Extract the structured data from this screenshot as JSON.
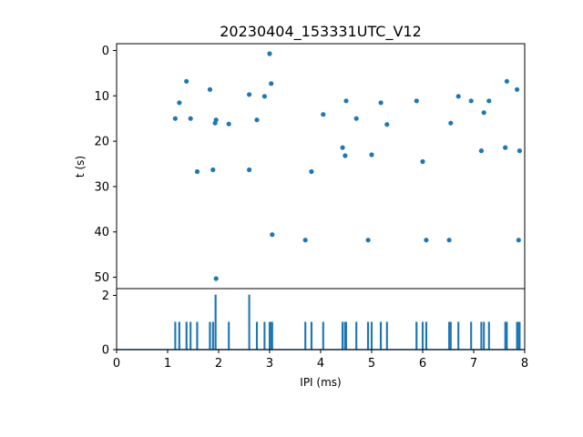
{
  "chart_data": [
    {
      "type": "scatter",
      "title": "20230404_153331UTC_V12",
      "xlabel": "",
      "ylabel": "t (s)",
      "xlim": [
        0,
        8
      ],
      "ylim": [
        52.5,
        -1.5
      ],
      "y_inverted": true,
      "yticks": [
        "0",
        "10",
        "20",
        "30",
        "40",
        "50"
      ],
      "grid": false,
      "color": "#1f77b4",
      "points": [
        {
          "x": 1.15,
          "y": 15.0
        },
        {
          "x": 1.23,
          "y": 11.5
        },
        {
          "x": 1.37,
          "y": 6.8
        },
        {
          "x": 1.45,
          "y": 15.0
        },
        {
          "x": 1.58,
          "y": 26.7
        },
        {
          "x": 1.83,
          "y": 8.6
        },
        {
          "x": 1.89,
          "y": 26.3
        },
        {
          "x": 1.93,
          "y": 16.0
        },
        {
          "x": 1.95,
          "y": 15.3
        },
        {
          "x": 1.95,
          "y": 50.3
        },
        {
          "x": 2.2,
          "y": 16.2
        },
        {
          "x": 2.6,
          "y": 9.7
        },
        {
          "x": 2.6,
          "y": 26.3
        },
        {
          "x": 2.75,
          "y": 15.3
        },
        {
          "x": 2.9,
          "y": 10.1
        },
        {
          "x": 3.0,
          "y": 0.7
        },
        {
          "x": 3.03,
          "y": 7.3
        },
        {
          "x": 3.05,
          "y": 40.6
        },
        {
          "x": 3.7,
          "y": 41.8
        },
        {
          "x": 3.82,
          "y": 26.7
        },
        {
          "x": 4.05,
          "y": 14.1
        },
        {
          "x": 4.43,
          "y": 21.4
        },
        {
          "x": 4.48,
          "y": 23.2
        },
        {
          "x": 4.5,
          "y": 11.1
        },
        {
          "x": 4.7,
          "y": 15.0
        },
        {
          "x": 4.93,
          "y": 41.8
        },
        {
          "x": 5.0,
          "y": 23.0
        },
        {
          "x": 5.18,
          "y": 11.5
        },
        {
          "x": 5.3,
          "y": 16.3
        },
        {
          "x": 5.88,
          "y": 11.1
        },
        {
          "x": 6.0,
          "y": 24.5
        },
        {
          "x": 6.07,
          "y": 41.8
        },
        {
          "x": 6.52,
          "y": 41.8
        },
        {
          "x": 6.55,
          "y": 16.0
        },
        {
          "x": 6.7,
          "y": 10.1
        },
        {
          "x": 6.95,
          "y": 11.1
        },
        {
          "x": 7.15,
          "y": 22.1
        },
        {
          "x": 7.2,
          "y": 13.7
        },
        {
          "x": 7.3,
          "y": 11.1
        },
        {
          "x": 7.62,
          "y": 21.4
        },
        {
          "x": 7.65,
          "y": 6.8
        },
        {
          "x": 7.85,
          "y": 8.6
        },
        {
          "x": 7.88,
          "y": 41.8
        },
        {
          "x": 7.9,
          "y": 22.1
        }
      ]
    },
    {
      "type": "line",
      "title": "",
      "xlabel": "IPI (ms)",
      "ylabel": "",
      "xlim": [
        0,
        8
      ],
      "ylim": [
        0,
        2.25
      ],
      "xticks": [
        "0",
        "1",
        "2",
        "3",
        "4",
        "5",
        "6",
        "7",
        "8"
      ],
      "yticks": [
        "0",
        "2"
      ],
      "grid": false,
      "color": "#1f77b4",
      "histogram_spikes": [
        {
          "x": 1.15,
          "count": 1
        },
        {
          "x": 1.23,
          "count": 1
        },
        {
          "x": 1.37,
          "count": 1
        },
        {
          "x": 1.45,
          "count": 1
        },
        {
          "x": 1.58,
          "count": 1
        },
        {
          "x": 1.83,
          "count": 1
        },
        {
          "x": 1.89,
          "count": 1
        },
        {
          "x": 1.94,
          "count": 2
        },
        {
          "x": 2.2,
          "count": 1
        },
        {
          "x": 2.6,
          "count": 2
        },
        {
          "x": 2.75,
          "count": 1
        },
        {
          "x": 2.9,
          "count": 1
        },
        {
          "x": 3.0,
          "count": 1
        },
        {
          "x": 3.03,
          "count": 1
        },
        {
          "x": 3.05,
          "count": 1
        },
        {
          "x": 3.7,
          "count": 1
        },
        {
          "x": 3.82,
          "count": 1
        },
        {
          "x": 4.05,
          "count": 1
        },
        {
          "x": 4.43,
          "count": 1
        },
        {
          "x": 4.48,
          "count": 1
        },
        {
          "x": 4.5,
          "count": 1
        },
        {
          "x": 4.7,
          "count": 1
        },
        {
          "x": 4.93,
          "count": 1
        },
        {
          "x": 5.0,
          "count": 1
        },
        {
          "x": 5.18,
          "count": 1
        },
        {
          "x": 5.3,
          "count": 1
        },
        {
          "x": 5.88,
          "count": 1
        },
        {
          "x": 6.0,
          "count": 1
        },
        {
          "x": 6.07,
          "count": 1
        },
        {
          "x": 6.52,
          "count": 1
        },
        {
          "x": 6.55,
          "count": 1
        },
        {
          "x": 6.7,
          "count": 1
        },
        {
          "x": 6.95,
          "count": 1
        },
        {
          "x": 7.15,
          "count": 1
        },
        {
          "x": 7.2,
          "count": 1
        },
        {
          "x": 7.3,
          "count": 1
        },
        {
          "x": 7.62,
          "count": 1
        },
        {
          "x": 7.65,
          "count": 1
        },
        {
          "x": 7.85,
          "count": 1
        },
        {
          "x": 7.88,
          "count": 1
        },
        {
          "x": 7.9,
          "count": 1
        }
      ]
    }
  ]
}
